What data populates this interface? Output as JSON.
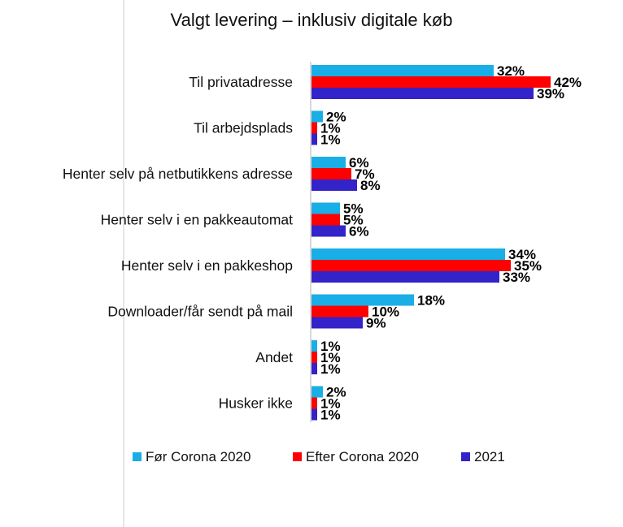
{
  "chart_data": {
    "type": "bar",
    "orientation": "horizontal",
    "title": "Valgt levering – inklusiv digitale køb",
    "categories": [
      "Til privatadresse",
      "Til arbejdsplads",
      "Henter selv på netbutikkens adresse",
      "Henter selv i en pakkeautomat",
      "Henter selv i en pakkeshop",
      "Downloader/får sendt på mail",
      "Andet",
      "Husker ikke"
    ],
    "series": [
      {
        "name": "Før Corona 2020",
        "color": "#1aaee6",
        "values": [
          32,
          2,
          6,
          5,
          34,
          18,
          1,
          2
        ],
        "labels": [
          "32%",
          "2%",
          "6%",
          "5%",
          "34%",
          "18%",
          "1%",
          "2%"
        ]
      },
      {
        "name": "Efter Corona 2020",
        "color": "#ff0000",
        "values": [
          42,
          1,
          7,
          5,
          35,
          10,
          1,
          1
        ],
        "labels": [
          "42%",
          "1%",
          "7%",
          "5%",
          "35%",
          "10%",
          "1%",
          "1%"
        ]
      },
      {
        "name": "2021",
        "color": "#3323c8",
        "values": [
          39,
          1,
          8,
          6,
          33,
          9,
          1,
          1
        ],
        "labels": [
          "39%",
          "1%",
          "8%",
          "6%",
          "33%",
          "9%",
          "1%",
          "1%"
        ]
      }
    ],
    "xlim": [
      0,
      42
    ],
    "grid": false,
    "legend_position": "bottom"
  }
}
